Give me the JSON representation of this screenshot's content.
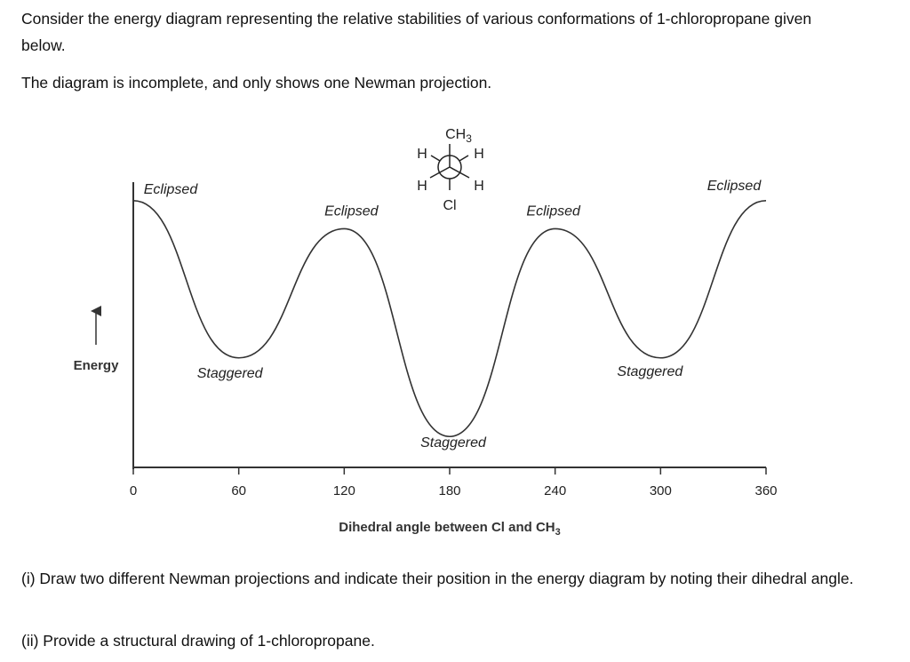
{
  "question": {
    "intro": "Consider the energy diagram representing the relative stabilities of various conformations of 1-chloropropane given below.",
    "note": "The diagram is incomplete, and only shows one Newman projection.",
    "part_i": "(i) Draw two different Newman projections and indicate their position in the energy diagram by noting their dihedral angle.",
    "part_ii": "(ii) Provide a structural drawing of 1-chloropropane."
  },
  "diagram": {
    "y_label": "Energy",
    "x_label": "Dihedral angle between Cl and CH",
    "x_label_sub": "3",
    "x_ticks": [
      "0",
      "60",
      "120",
      "180",
      "240",
      "300",
      "360"
    ],
    "extrema": [
      {
        "angle": 0,
        "label": "Eclipsed",
        "relative_energy": 0.95
      },
      {
        "angle": 60,
        "label": "Staggered",
        "relative_energy": 0.39
      },
      {
        "angle": 120,
        "label": "Eclipsed",
        "relative_energy": 0.85
      },
      {
        "angle": 180,
        "label": "Staggered",
        "relative_energy": 0.11
      },
      {
        "angle": 240,
        "label": "Eclipsed",
        "relative_energy": 0.85
      },
      {
        "angle": 300,
        "label": "Staggered",
        "relative_energy": 0.39
      },
      {
        "angle": 360,
        "label": "Eclipsed",
        "relative_energy": 0.95
      }
    ],
    "newman": {
      "front_top": "CH",
      "front_top_sub": "3",
      "front_left": "H",
      "front_right": "H",
      "back_left": "H",
      "back_right": "H",
      "back_bottom": "Cl"
    }
  }
}
